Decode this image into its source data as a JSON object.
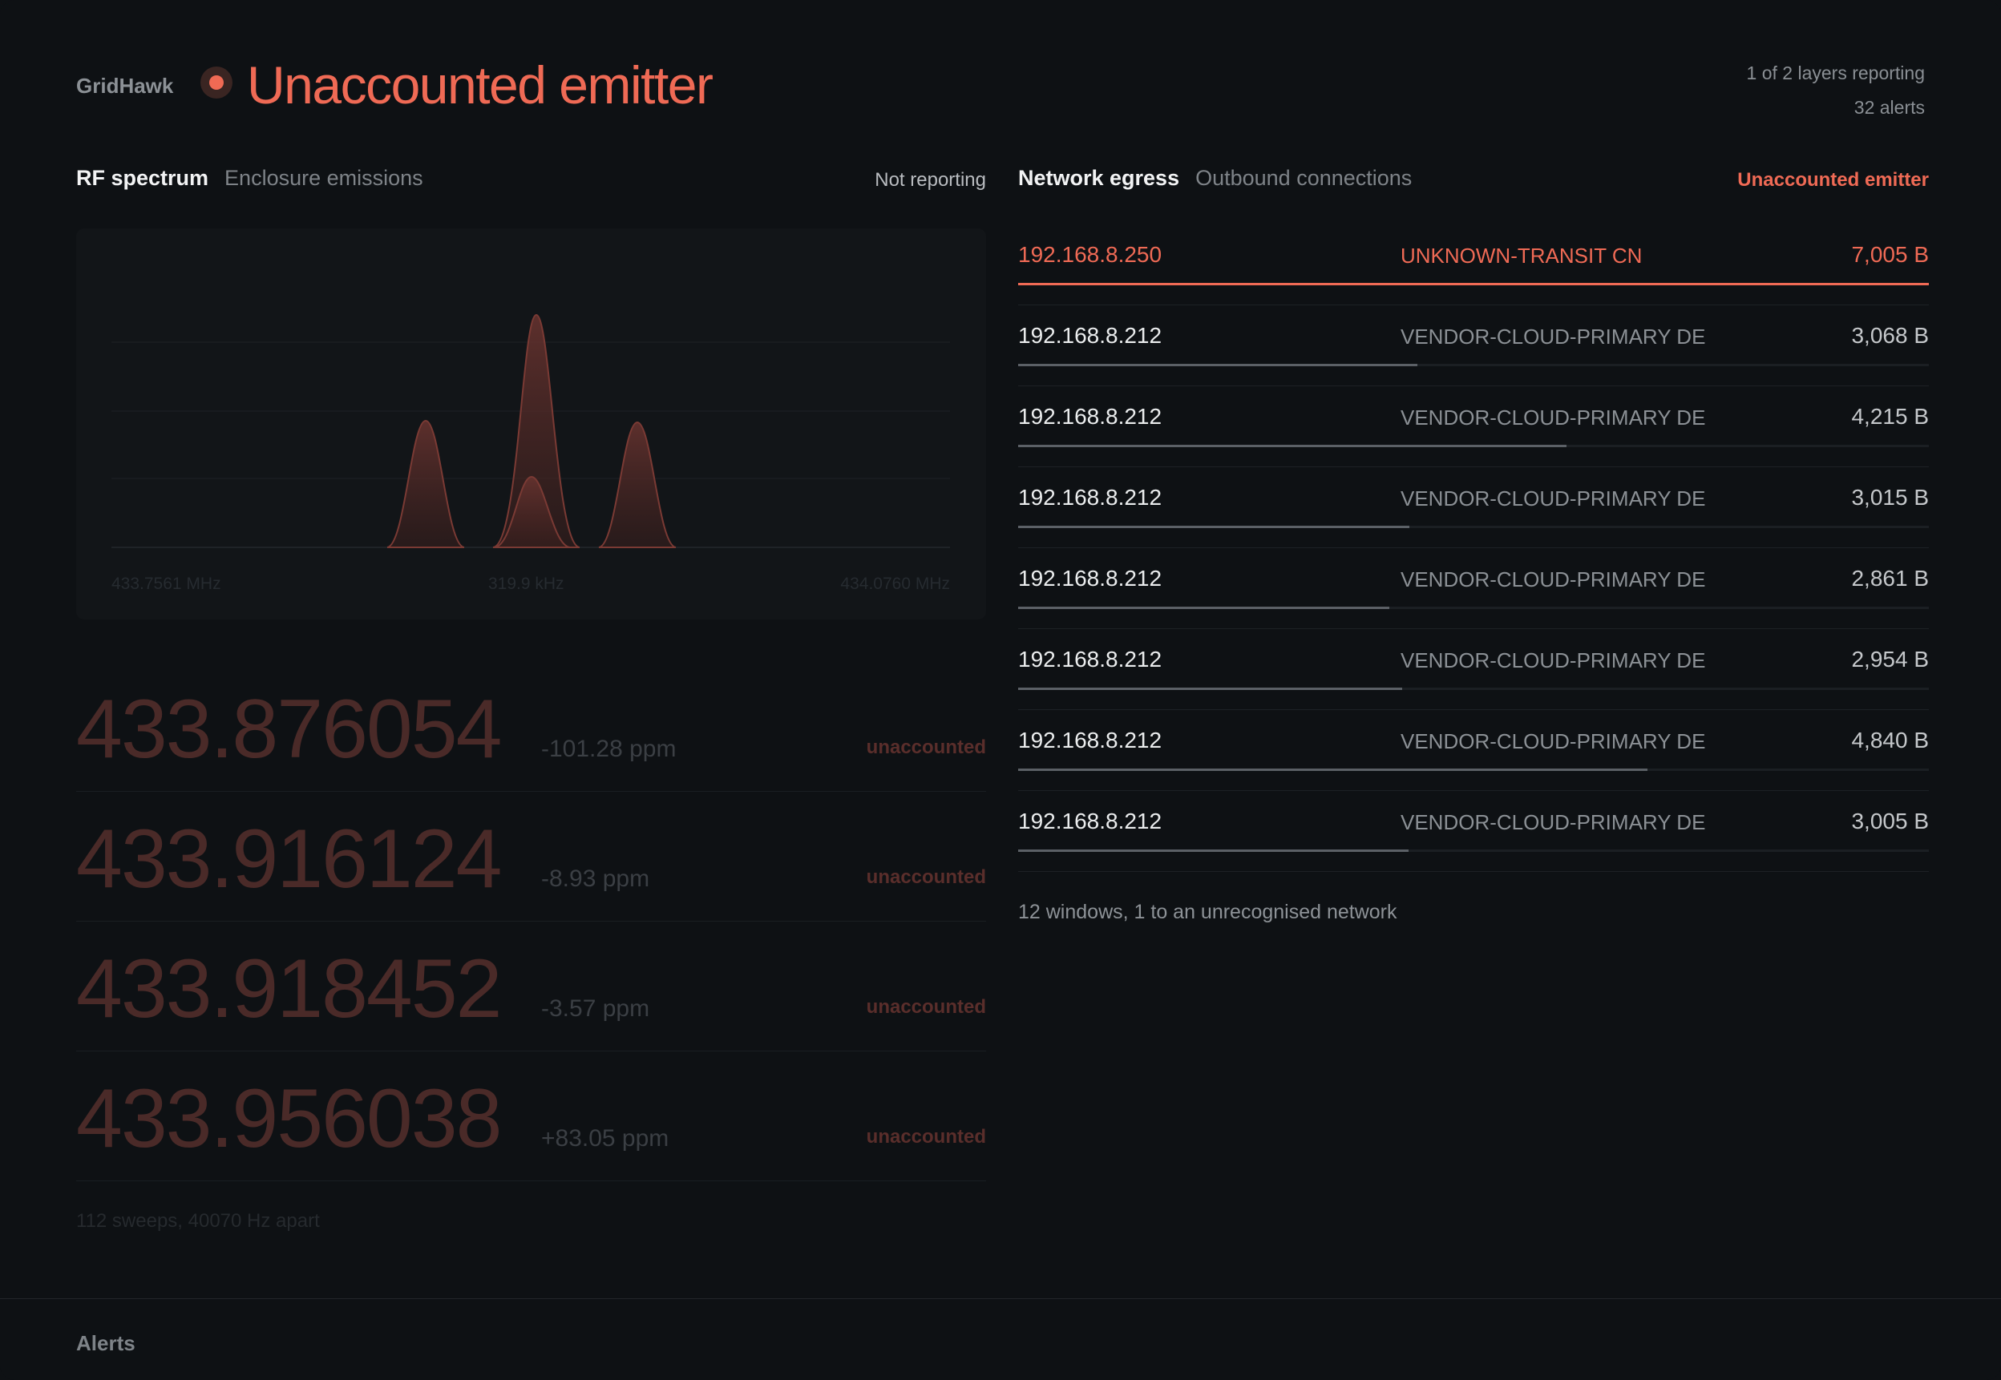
{
  "header": {
    "brand": "GridHawk",
    "title": "Unaccounted emitter",
    "layers": "1 of 2 layers reporting",
    "alerts_count": "32 alerts",
    "accent": "#ef6a55"
  },
  "rf": {
    "title": "RF spectrum",
    "subtitle": "Enclosure emissions",
    "status": "Not reporting",
    "axis_left": "433.7561 MHz",
    "axis_mid": "319.9 kHz",
    "axis_right": "434.0760 MHz",
    "emitters": [
      {
        "freq": "433.876054",
        "ppm": "-101.28 ppm",
        "state": "unaccounted"
      },
      {
        "freq": "433.916124",
        "ppm": "-8.93 ppm",
        "state": "unaccounted"
      },
      {
        "freq": "433.918452",
        "ppm": "-3.57 ppm",
        "state": "unaccounted"
      },
      {
        "freq": "433.956038",
        "ppm": "+83.05 ppm",
        "state": "unaccounted"
      }
    ],
    "footer": "112 sweeps, 40070 Hz apart"
  },
  "network": {
    "title": "Network egress",
    "subtitle": "Outbound connections",
    "status": "Unaccounted emitter",
    "rows": [
      {
        "ip": "192.168.8.250",
        "net": "UNKNOWN-TRANSIT CN",
        "bytes": "7,005 B",
        "share": 1.0,
        "alert": true
      },
      {
        "ip": "192.168.8.212",
        "net": "VENDOR-CLOUD-PRIMARY DE",
        "bytes": "3,068 B",
        "share": 0.438,
        "alert": false
      },
      {
        "ip": "192.168.8.212",
        "net": "VENDOR-CLOUD-PRIMARY DE",
        "bytes": "4,215 B",
        "share": 0.602,
        "alert": false
      },
      {
        "ip": "192.168.8.212",
        "net": "VENDOR-CLOUD-PRIMARY DE",
        "bytes": "3,015 B",
        "share": 0.43,
        "alert": false
      },
      {
        "ip": "192.168.8.212",
        "net": "VENDOR-CLOUD-PRIMARY DE",
        "bytes": "2,861 B",
        "share": 0.408,
        "alert": false
      },
      {
        "ip": "192.168.8.212",
        "net": "VENDOR-CLOUD-PRIMARY DE",
        "bytes": "2,954 B",
        "share": 0.422,
        "alert": false
      },
      {
        "ip": "192.168.8.212",
        "net": "VENDOR-CLOUD-PRIMARY DE",
        "bytes": "4,840 B",
        "share": 0.691,
        "alert": false
      },
      {
        "ip": "192.168.8.212",
        "net": "VENDOR-CLOUD-PRIMARY DE",
        "bytes": "3,005 B",
        "share": 0.429,
        "alert": false
      }
    ],
    "footer": "12 windows, 1 to an unrecognised network"
  },
  "alerts": {
    "title": "Alerts"
  }
}
